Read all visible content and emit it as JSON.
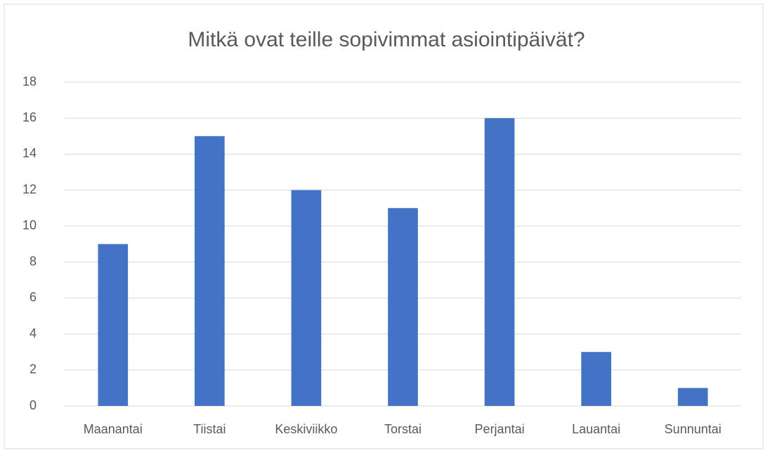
{
  "chart_data": {
    "type": "bar",
    "title": "Mitkä ovat teille sopivimmat asiointipäivät?",
    "categories": [
      "Maanantai",
      "Tiistai",
      "Keskiviikko",
      "Torstai",
      "Perjantai",
      "Lauantai",
      "Sunnuntai"
    ],
    "values": [
      9,
      15,
      12,
      11,
      16,
      3,
      1
    ],
    "color": "#4472c4",
    "ylim": [
      0,
      18
    ],
    "yticks": [
      0,
      2,
      4,
      6,
      8,
      10,
      12,
      14,
      16,
      18
    ],
    "grid": true
  }
}
